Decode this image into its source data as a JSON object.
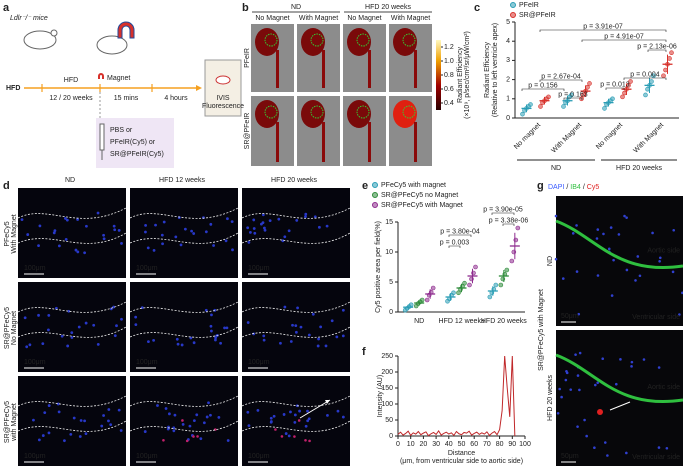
{
  "figure": {
    "panel_labels": [
      "a",
      "b",
      "c",
      "d",
      "e",
      "f",
      "g"
    ],
    "a": {
      "mice": "Ldlr⁻/⁻ mice",
      "hfd_arrow": "HFD",
      "hfd": "HFD",
      "duration": "12 / 20 weeks",
      "magnet": "Magnet",
      "magnet_time": "15 mins",
      "wait": "4 hours",
      "readout": [
        "IVIS",
        "Fluorescence"
      ],
      "injection": [
        "PBS or",
        "PFeIR(Cy5) or",
        "SR@PFeIR(Cy5)"
      ]
    },
    "b": {
      "groups": [
        "ND",
        "HFD 20 weeks"
      ],
      "columns": [
        "No Magnet",
        "With Magnet",
        "No Magnet",
        "With Magnet"
      ],
      "rows": [
        "PFeIR",
        "SR@PFeIR"
      ],
      "colorbar_label": [
        "Radiant Efficiency",
        "(×10⁹, p/sec/cm²/sr/μW/cm²)"
      ],
      "colorbar_lim": [
        0.3,
        1.3
      ],
      "colorbar_ticks": [
        0.4,
        0.6,
        0.8,
        {
          "value": 1,
          "label": "1.0"
        },
        1.2
      ]
    },
    "d": {
      "columns": [
        "ND",
        "HFD 12 weeks",
        "HFD 20 weeks"
      ],
      "rows": [
        [
          "PFeCy5",
          "With Magnet"
        ],
        [
          "SR@PFeCy5",
          "No Magnet"
        ],
        [
          "SR@PFeCy5",
          "with Magnet"
        ]
      ],
      "scale_bar": "100μm"
    },
    "g": {
      "stains": [
        "DAPI",
        "IB4",
        "Cy5"
      ],
      "stain_colors": [
        "#3a5bff",
        "#2fbf3f",
        "#e02020"
      ],
      "separator": "/",
      "rows": [
        "ND",
        "HFD 20 weeks"
      ],
      "group": "SR@PFeCy5 with Magnet",
      "aortic": "Aortic side",
      "ventricular": "Ventricular side",
      "scale_bar": "50μm"
    }
  },
  "chart_data": [
    {
      "type": "dot",
      "ylabel": [
        "Radiant Efficiency",
        "(Relative to left ventricle apex)"
      ],
      "categories": [
        "No magnet",
        "With Magnet",
        "No magnet",
        "With Magnet"
      ],
      "groups": [
        "ND",
        "HFD 20 weeks"
      ],
      "ylim": [
        0,
        5
      ],
      "yticks": [
        0,
        1,
        2,
        3,
        4,
        5
      ],
      "series": [
        {
          "name": "PFeIR",
          "color": "#2a9db5",
          "values": [
            0.5,
            0.9,
            0.8,
            1.7
          ],
          "errors": [
            0.2,
            0.25,
            0.2,
            0.4
          ],
          "points": [
            [
              0.2,
              0.4,
              0.5,
              0.6,
              0.7
            ],
            [
              0.6,
              0.8,
              0.9,
              1.1,
              1.2
            ],
            [
              0.5,
              0.7,
              0.8,
              0.9,
              1.0
            ],
            [
              1.2,
              1.5,
              1.7,
              1.9,
              2.2
            ]
          ]
        },
        {
          "name": "SR@PFeIR",
          "color": "#d7312b",
          "values": [
            0.9,
            1.4,
            1.5,
            2.8
          ],
          "errors": [
            0.2,
            0.3,
            0.3,
            0.5
          ],
          "points": [
            [
              0.6,
              0.8,
              0.9,
              1.0,
              1.1
            ],
            [
              1.0,
              1.2,
              1.4,
              1.6,
              1.8
            ],
            [
              1.1,
              1.3,
              1.5,
              1.7,
              1.9
            ],
            [
              2.2,
              2.5,
              2.8,
              3.1,
              3.4
            ]
          ]
        }
      ],
      "annotations": [
        "p = 2.67e-04",
        "p = 0.156",
        "p = 0.163",
        "p = 0.004",
        "p = 0.013",
        "p = 3.91e-07",
        "p = 4.91e-07",
        "p = 2.13e-06"
      ]
    },
    {
      "type": "dot",
      "ylabel": [
        "Cy5 positive area per field(%)"
      ],
      "categories": [
        "ND",
        "HFD 12 weeks",
        "HFD 20 weeks"
      ],
      "ylim": [
        0,
        15
      ],
      "yticks": [
        0,
        5,
        10,
        15
      ],
      "series": [
        {
          "name": "PFeCy5 with magnet",
          "color": "#2a9db5",
          "values": [
            0.8,
            2.5,
            3.5
          ],
          "errors": [
            0.4,
            0.6,
            0.8
          ],
          "points": [
            [
              0.3,
              0.6,
              0.9,
              1.2
            ],
            [
              1.8,
              2.2,
              2.8,
              3.2
            ],
            [
              2.5,
              3.2,
              3.8,
              4.5
            ]
          ]
        },
        {
          "name": "SR@PFeCy5 no Magnet",
          "color": "#2e8b3a",
          "values": [
            1.5,
            4,
            6
          ],
          "errors": [
            0.4,
            0.7,
            1
          ],
          "points": [
            [
              1.0,
              1.4,
              1.7,
              2.0
            ],
            [
              3.2,
              3.8,
              4.3,
              4.8
            ],
            [
              4.5,
              5.5,
              6.3,
              7.0
            ]
          ]
        },
        {
          "name": "SR@PFeCy5 with Magnet",
          "color": "#8e2c8e",
          "values": [
            3,
            6,
            11
          ],
          "errors": [
            0.8,
            1.2,
            2.2
          ],
          "points": [
            [
              2.0,
              2.8,
              3.3,
              4.0
            ],
            [
              4.5,
              5.5,
              6.5,
              7.5
            ],
            [
              8.5,
              10,
              12,
              14
            ]
          ]
        }
      ],
      "annotations": [
        "p = 3.80e-04",
        "p = 0.003",
        "p = 3.90e-05",
        "p = 3.38e-06"
      ]
    },
    {
      "type": "line",
      "ylabel": [
        "Intensity (AU)"
      ],
      "xlabel": [
        "Distance",
        "(μm, from ventricular side to aortic side)"
      ],
      "xlim": [
        0,
        100
      ],
      "xticks": [
        0,
        10,
        20,
        30,
        40,
        50,
        60,
        70,
        80,
        90,
        100
      ],
      "ylim": [
        0,
        250
      ],
      "yticks": [
        0,
        50,
        100,
        150,
        200,
        250
      ],
      "x": [
        0,
        2,
        4,
        6,
        8,
        10,
        12,
        14,
        16,
        18,
        20,
        22,
        24,
        26,
        28,
        30,
        32,
        34,
        36,
        38,
        40,
        42,
        44,
        46,
        48,
        50,
        52,
        54,
        56,
        58,
        60,
        62,
        64,
        66,
        68,
        70,
        72,
        74,
        76,
        78,
        80,
        82,
        84,
        86,
        88,
        90,
        92
      ],
      "series": [
        {
          "color": "#c0282a",
          "values": [
            5,
            12,
            3,
            8,
            15,
            2,
            10,
            6,
            14,
            4,
            9,
            13,
            1,
            7,
            11,
            5,
            16,
            3,
            8,
            12,
            6,
            10,
            2,
            14,
            7,
            4,
            11,
            9,
            15,
            3,
            8,
            12,
            5,
            10,
            6,
            13,
            2,
            9,
            14,
            4,
            20,
            80,
            250,
            150,
            60,
            250,
            0
          ]
        }
      ]
    }
  ]
}
